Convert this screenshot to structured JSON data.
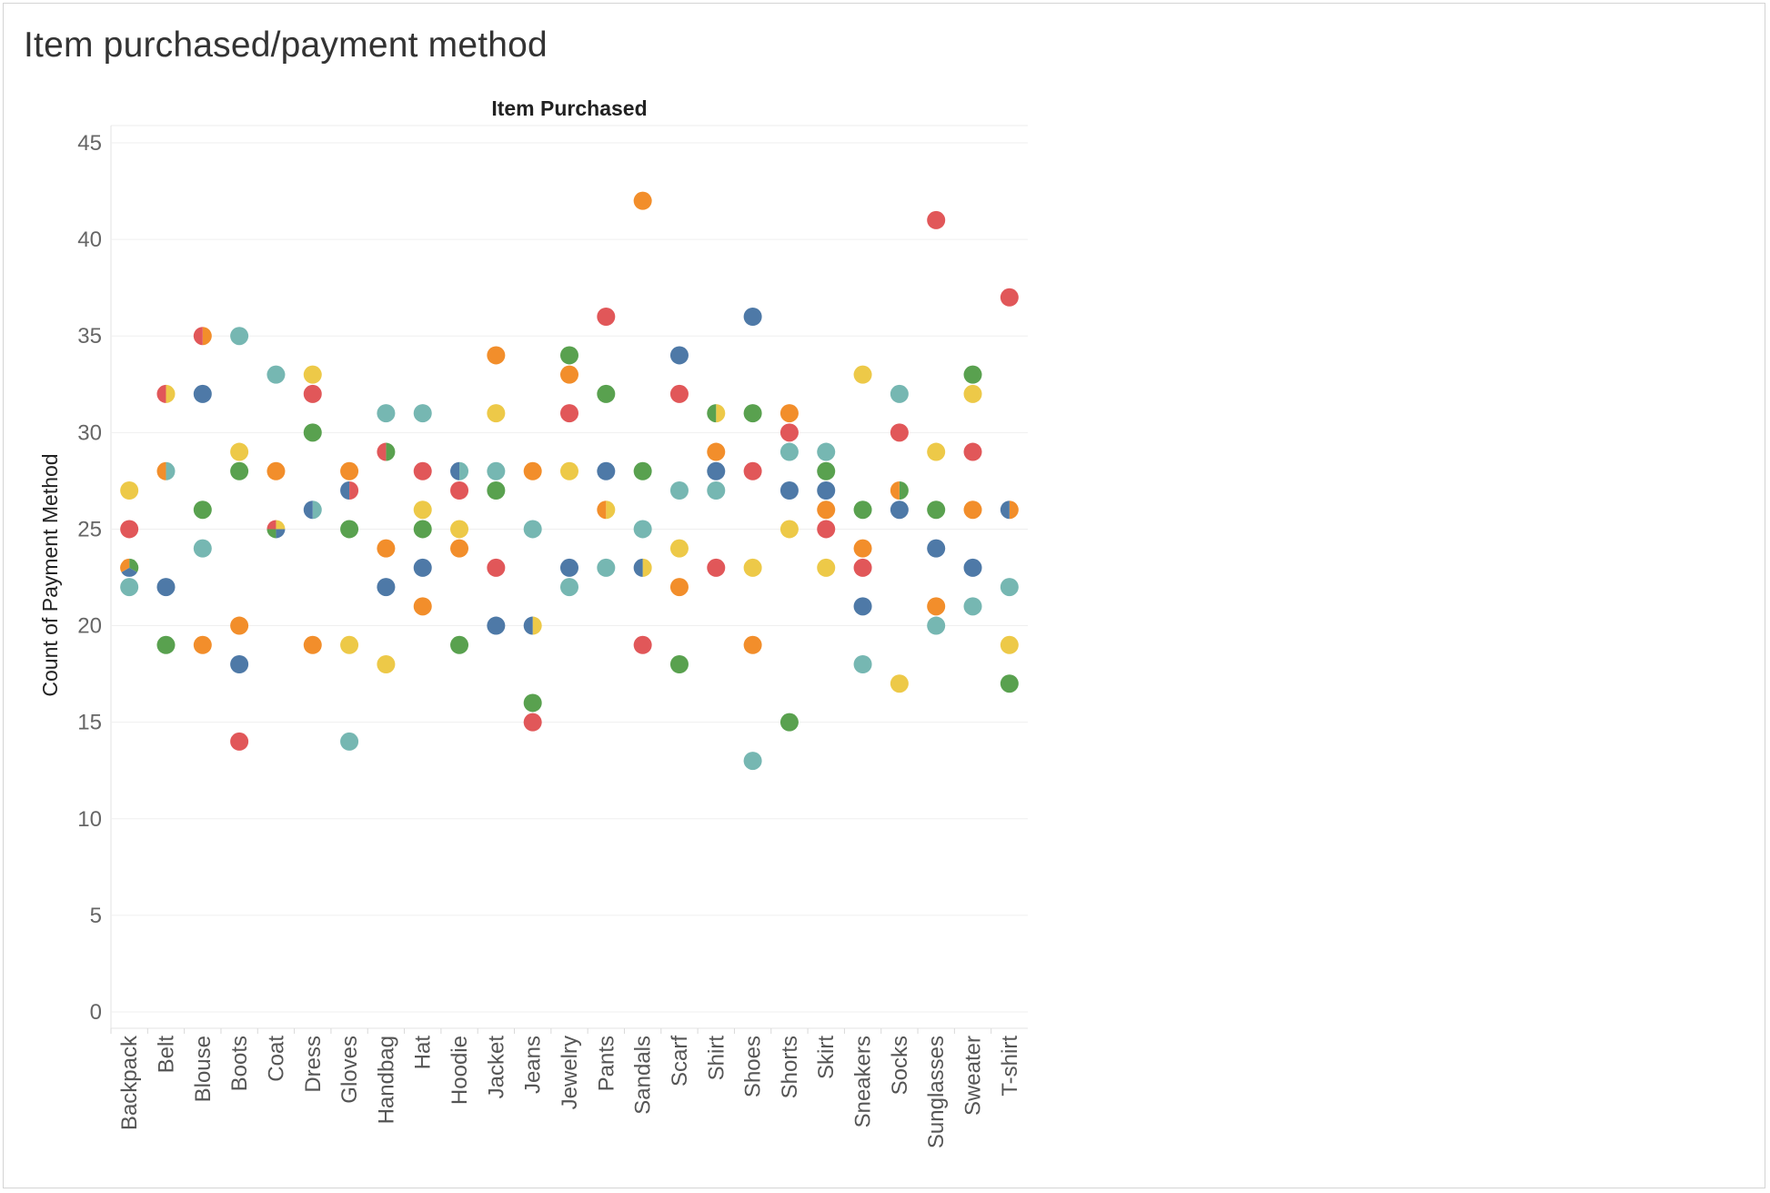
{
  "title": "Item purchased/payment method",
  "chart_data": {
    "type": "scatter",
    "title": "Item purchased/payment method",
    "column_header": "Item Purchased",
    "ylabel": "Count of Payment Method",
    "xlabel": "",
    "ylim": [
      0,
      45
    ],
    "yticks": [
      0,
      5,
      10,
      15,
      20,
      25,
      30,
      35,
      40,
      45
    ],
    "grid": true,
    "legend": "none",
    "colors": {
      "blue": "#4e79a7",
      "orange": "#f28e2b",
      "red": "#e15759",
      "teal": "#76b7b2",
      "green": "#59a14f",
      "yellow": "#edc948"
    },
    "categories": [
      "Backpack",
      "Belt",
      "Blouse",
      "Boots",
      "Coat",
      "Dress",
      "Gloves",
      "Handbag",
      "Hat",
      "Hoodie",
      "Jacket",
      "Jeans",
      "Jewelry",
      "Pants",
      "Sandals",
      "Scarf",
      "Shirt",
      "Shoes",
      "Shorts",
      "Skirt",
      "Sneakers",
      "Socks",
      "Sunglasses",
      "Sweater",
      "T-shirt"
    ],
    "points": [
      {
        "category": "Backpack",
        "values": [
          {
            "y": 27,
            "colors": [
              "yellow"
            ]
          },
          {
            "y": 25,
            "colors": [
              "red"
            ]
          },
          {
            "y": 23,
            "colors": [
              "green",
              "blue",
              "orange"
            ]
          },
          {
            "y": 22,
            "colors": [
              "teal"
            ]
          }
        ]
      },
      {
        "category": "Belt",
        "values": [
          {
            "y": 32,
            "colors": [
              "yellow",
              "red"
            ]
          },
          {
            "y": 28,
            "colors": [
              "teal",
              "orange"
            ]
          },
          {
            "y": 22,
            "colors": [
              "blue"
            ]
          },
          {
            "y": 19,
            "colors": [
              "green"
            ]
          }
        ]
      },
      {
        "category": "Blouse",
        "values": [
          {
            "y": 35,
            "colors": [
              "orange",
              "red"
            ]
          },
          {
            "y": 32,
            "colors": [
              "blue"
            ]
          },
          {
            "y": 26,
            "colors": [
              "green"
            ]
          },
          {
            "y": 24,
            "colors": [
              "teal"
            ]
          },
          {
            "y": 19,
            "colors": [
              "orange"
            ]
          }
        ]
      },
      {
        "category": "Boots",
        "values": [
          {
            "y": 35,
            "colors": [
              "teal"
            ]
          },
          {
            "y": 29,
            "colors": [
              "yellow"
            ]
          },
          {
            "y": 28,
            "colors": [
              "green"
            ]
          },
          {
            "y": 20,
            "colors": [
              "orange"
            ]
          },
          {
            "y": 18,
            "colors": [
              "blue"
            ]
          },
          {
            "y": 14,
            "colors": [
              "red"
            ]
          }
        ]
      },
      {
        "category": "Coat",
        "values": [
          {
            "y": 33,
            "colors": [
              "teal"
            ]
          },
          {
            "y": 28,
            "colors": [
              "orange"
            ]
          },
          {
            "y": 25,
            "colors": [
              "yellow",
              "blue",
              "green",
              "red"
            ]
          }
        ]
      },
      {
        "category": "Dress",
        "values": [
          {
            "y": 33,
            "colors": [
              "yellow"
            ]
          },
          {
            "y": 32,
            "colors": [
              "red"
            ]
          },
          {
            "y": 30,
            "colors": [
              "green"
            ]
          },
          {
            "y": 26,
            "colors": [
              "teal",
              "blue"
            ]
          },
          {
            "y": 19,
            "colors": [
              "orange"
            ]
          }
        ]
      },
      {
        "category": "Gloves",
        "values": [
          {
            "y": 28,
            "colors": [
              "orange"
            ]
          },
          {
            "y": 27,
            "colors": [
              "red",
              "blue"
            ]
          },
          {
            "y": 25,
            "colors": [
              "green"
            ]
          },
          {
            "y": 19,
            "colors": [
              "yellow"
            ]
          },
          {
            "y": 14,
            "colors": [
              "teal"
            ]
          }
        ]
      },
      {
        "category": "Handbag",
        "values": [
          {
            "y": 31,
            "colors": [
              "teal"
            ]
          },
          {
            "y": 29,
            "colors": [
              "green",
              "red"
            ]
          },
          {
            "y": 24,
            "colors": [
              "orange"
            ]
          },
          {
            "y": 22,
            "colors": [
              "blue"
            ]
          },
          {
            "y": 18,
            "colors": [
              "yellow"
            ]
          }
        ]
      },
      {
        "category": "Hat",
        "values": [
          {
            "y": 31,
            "colors": [
              "teal"
            ]
          },
          {
            "y": 28,
            "colors": [
              "red"
            ]
          },
          {
            "y": 26,
            "colors": [
              "yellow"
            ]
          },
          {
            "y": 25,
            "colors": [
              "green"
            ]
          },
          {
            "y": 23,
            "colors": [
              "blue"
            ]
          },
          {
            "y": 21,
            "colors": [
              "orange"
            ]
          }
        ]
      },
      {
        "category": "Hoodie",
        "values": [
          {
            "y": 28,
            "colors": [
              "teal",
              "blue"
            ]
          },
          {
            "y": 27,
            "colors": [
              "red"
            ]
          },
          {
            "y": 25,
            "colors": [
              "yellow"
            ]
          },
          {
            "y": 24,
            "colors": [
              "orange"
            ]
          },
          {
            "y": 19,
            "colors": [
              "green"
            ]
          }
        ]
      },
      {
        "category": "Jacket",
        "values": [
          {
            "y": 34,
            "colors": [
              "orange"
            ]
          },
          {
            "y": 31,
            "colors": [
              "yellow"
            ]
          },
          {
            "y": 28,
            "colors": [
              "teal"
            ]
          },
          {
            "y": 27,
            "colors": [
              "green"
            ]
          },
          {
            "y": 23,
            "colors": [
              "red"
            ]
          },
          {
            "y": 20,
            "colors": [
              "blue"
            ]
          }
        ]
      },
      {
        "category": "Jeans",
        "values": [
          {
            "y": 28,
            "colors": [
              "orange"
            ]
          },
          {
            "y": 25,
            "colors": [
              "teal"
            ]
          },
          {
            "y": 20,
            "colors": [
              "yellow",
              "blue"
            ]
          },
          {
            "y": 16,
            "colors": [
              "green"
            ]
          },
          {
            "y": 15,
            "colors": [
              "red"
            ]
          }
        ]
      },
      {
        "category": "Jewelry",
        "values": [
          {
            "y": 34,
            "colors": [
              "green"
            ]
          },
          {
            "y": 33,
            "colors": [
              "orange"
            ]
          },
          {
            "y": 31,
            "colors": [
              "red"
            ]
          },
          {
            "y": 28,
            "colors": [
              "yellow"
            ]
          },
          {
            "y": 23,
            "colors": [
              "blue"
            ]
          },
          {
            "y": 22,
            "colors": [
              "teal"
            ]
          }
        ]
      },
      {
        "category": "Pants",
        "values": [
          {
            "y": 36,
            "colors": [
              "red"
            ]
          },
          {
            "y": 32,
            "colors": [
              "green"
            ]
          },
          {
            "y": 28,
            "colors": [
              "blue"
            ]
          },
          {
            "y": 26,
            "colors": [
              "yellow",
              "orange"
            ]
          },
          {
            "y": 23,
            "colors": [
              "teal"
            ]
          }
        ]
      },
      {
        "category": "Sandals",
        "values": [
          {
            "y": 42,
            "colors": [
              "orange"
            ]
          },
          {
            "y": 28,
            "colors": [
              "green"
            ]
          },
          {
            "y": 25,
            "colors": [
              "teal"
            ]
          },
          {
            "y": 23,
            "colors": [
              "yellow",
              "blue"
            ]
          },
          {
            "y": 19,
            "colors": [
              "red"
            ]
          }
        ]
      },
      {
        "category": "Scarf",
        "values": [
          {
            "y": 34,
            "colors": [
              "blue"
            ]
          },
          {
            "y": 32,
            "colors": [
              "red"
            ]
          },
          {
            "y": 27,
            "colors": [
              "teal"
            ]
          },
          {
            "y": 24,
            "colors": [
              "yellow"
            ]
          },
          {
            "y": 22,
            "colors": [
              "orange"
            ]
          },
          {
            "y": 18,
            "colors": [
              "green"
            ]
          }
        ]
      },
      {
        "category": "Shirt",
        "values": [
          {
            "y": 31,
            "colors": [
              "yellow",
              "green"
            ]
          },
          {
            "y": 29,
            "colors": [
              "orange"
            ]
          },
          {
            "y": 28,
            "colors": [
              "blue"
            ]
          },
          {
            "y": 27,
            "colors": [
              "teal"
            ]
          },
          {
            "y": 23,
            "colors": [
              "red"
            ]
          }
        ]
      },
      {
        "category": "Shoes",
        "values": [
          {
            "y": 36,
            "colors": [
              "blue"
            ]
          },
          {
            "y": 31,
            "colors": [
              "green"
            ]
          },
          {
            "y": 28,
            "colors": [
              "red"
            ]
          },
          {
            "y": 23,
            "colors": [
              "yellow"
            ]
          },
          {
            "y": 19,
            "colors": [
              "orange"
            ]
          },
          {
            "y": 13,
            "colors": [
              "teal"
            ]
          }
        ]
      },
      {
        "category": "Shorts",
        "values": [
          {
            "y": 31,
            "colors": [
              "orange"
            ]
          },
          {
            "y": 30,
            "colors": [
              "red"
            ]
          },
          {
            "y": 29,
            "colors": [
              "teal"
            ]
          },
          {
            "y": 27,
            "colors": [
              "blue"
            ]
          },
          {
            "y": 25,
            "colors": [
              "yellow"
            ]
          },
          {
            "y": 15,
            "colors": [
              "green"
            ]
          }
        ]
      },
      {
        "category": "Skirt",
        "values": [
          {
            "y": 29,
            "colors": [
              "teal"
            ]
          },
          {
            "y": 28,
            "colors": [
              "green"
            ]
          },
          {
            "y": 27,
            "colors": [
              "blue"
            ]
          },
          {
            "y": 26,
            "colors": [
              "orange"
            ]
          },
          {
            "y": 25,
            "colors": [
              "red"
            ]
          },
          {
            "y": 23,
            "colors": [
              "yellow"
            ]
          }
        ]
      },
      {
        "category": "Sneakers",
        "values": [
          {
            "y": 33,
            "colors": [
              "yellow"
            ]
          },
          {
            "y": 26,
            "colors": [
              "green"
            ]
          },
          {
            "y": 24,
            "colors": [
              "orange"
            ]
          },
          {
            "y": 23,
            "colors": [
              "red"
            ]
          },
          {
            "y": 21,
            "colors": [
              "blue"
            ]
          },
          {
            "y": 18,
            "colors": [
              "teal"
            ]
          }
        ]
      },
      {
        "category": "Socks",
        "values": [
          {
            "y": 32,
            "colors": [
              "teal"
            ]
          },
          {
            "y": 30,
            "colors": [
              "red"
            ]
          },
          {
            "y": 27,
            "colors": [
              "green",
              "orange"
            ]
          },
          {
            "y": 26,
            "colors": [
              "blue"
            ]
          },
          {
            "y": 17,
            "colors": [
              "yellow"
            ]
          }
        ]
      },
      {
        "category": "Sunglasses",
        "values": [
          {
            "y": 41,
            "colors": [
              "red"
            ]
          },
          {
            "y": 29,
            "colors": [
              "yellow"
            ]
          },
          {
            "y": 26,
            "colors": [
              "green"
            ]
          },
          {
            "y": 24,
            "colors": [
              "blue"
            ]
          },
          {
            "y": 21,
            "colors": [
              "orange"
            ]
          },
          {
            "y": 20,
            "colors": [
              "teal"
            ]
          }
        ]
      },
      {
        "category": "Sweater",
        "values": [
          {
            "y": 33,
            "colors": [
              "green"
            ]
          },
          {
            "y": 32,
            "colors": [
              "yellow"
            ]
          },
          {
            "y": 29,
            "colors": [
              "red"
            ]
          },
          {
            "y": 26,
            "colors": [
              "orange"
            ]
          },
          {
            "y": 23,
            "colors": [
              "blue"
            ]
          },
          {
            "y": 21,
            "colors": [
              "teal"
            ]
          }
        ]
      },
      {
        "category": "T-shirt",
        "values": [
          {
            "y": 37,
            "colors": [
              "red"
            ]
          },
          {
            "y": 26,
            "colors": [
              "orange",
              "blue"
            ]
          },
          {
            "y": 22,
            "colors": [
              "teal"
            ]
          },
          {
            "y": 19,
            "colors": [
              "yellow"
            ]
          },
          {
            "y": 17,
            "colors": [
              "green"
            ]
          }
        ]
      }
    ]
  }
}
